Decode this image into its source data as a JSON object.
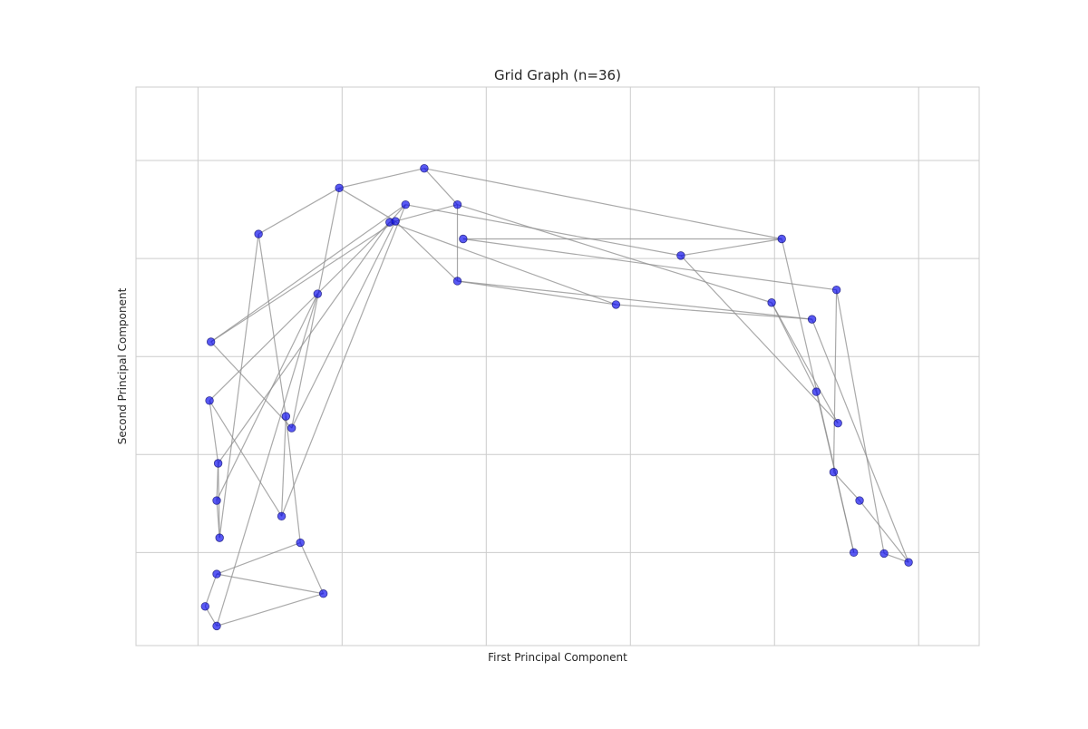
{
  "chart_data": {
    "type": "scatter",
    "subtype": "network-graph",
    "title": "Grid Graph (n=36)",
    "xlabel": "First Principal Component",
    "ylabel": "Second Principal Component",
    "xlim": [
      -1.0,
      4.85
    ],
    "ylim": [
      -5.95,
      -0.25
    ],
    "x_grid": [
      -0.57,
      0.43,
      1.43,
      2.43,
      3.43,
      4.43
    ],
    "y_grid": [
      -1.0,
      -2.0,
      -3.0,
      -4.0,
      -5.0
    ],
    "grid": true,
    "tick_labels_visible": false,
    "node_color": "#0000ee",
    "edge_color": "#8c8c8c",
    "background": "#ffffff",
    "grid_color": "#cccccc",
    "nodes": [
      {
        "id": 0,
        "x": -0.52,
        "y": -5.55
      },
      {
        "id": 1,
        "x": -0.44,
        "y": -5.75
      },
      {
        "id": 2,
        "x": -0.44,
        "y": -5.22
      },
      {
        "id": 3,
        "x": -0.42,
        "y": -4.85
      },
      {
        "id": 4,
        "x": 0.3,
        "y": -5.42
      },
      {
        "id": 5,
        "x": -0.44,
        "y": -4.47
      },
      {
        "id": 6,
        "x": -0.43,
        "y": -4.09
      },
      {
        "id": 7,
        "x": 0.01,
        "y": -4.63
      },
      {
        "id": 8,
        "x": 0.14,
        "y": -4.9
      },
      {
        "id": 9,
        "x": -0.49,
        "y": -3.45
      },
      {
        "id": 10,
        "x": 0.04,
        "y": -3.61
      },
      {
        "id": 11,
        "x": 0.08,
        "y": -3.73
      },
      {
        "id": 12,
        "x": -0.48,
        "y": -2.85
      },
      {
        "id": 13,
        "x": 0.26,
        "y": -2.36
      },
      {
        "id": 14,
        "x": -0.15,
        "y": -1.75
      },
      {
        "id": 15,
        "x": 0.41,
        "y": -1.28
      },
      {
        "id": 16,
        "x": 0.76,
        "y": -1.63
      },
      {
        "id": 17,
        "x": 0.8,
        "y": -1.62
      },
      {
        "id": 18,
        "x": 0.87,
        "y": -1.45
      },
      {
        "id": 19,
        "x": 1.0,
        "y": -1.08
      },
      {
        "id": 20,
        "x": 1.23,
        "y": -1.45
      },
      {
        "id": 21,
        "x": 1.27,
        "y": -1.8
      },
      {
        "id": 22,
        "x": 1.23,
        "y": -2.23
      },
      {
        "id": 23,
        "x": 2.33,
        "y": -2.47
      },
      {
        "id": 24,
        "x": 2.78,
        "y": -1.97
      },
      {
        "id": 25,
        "x": 3.48,
        "y": -1.8
      },
      {
        "id": 26,
        "x": 3.41,
        "y": -2.45
      },
      {
        "id": 27,
        "x": 3.86,
        "y": -2.32
      },
      {
        "id": 28,
        "x": 3.69,
        "y": -2.62
      },
      {
        "id": 29,
        "x": 3.72,
        "y": -3.36
      },
      {
        "id": 30,
        "x": 3.87,
        "y": -3.68
      },
      {
        "id": 31,
        "x": 3.84,
        "y": -4.18
      },
      {
        "id": 32,
        "x": 4.02,
        "y": -4.47
      },
      {
        "id": 33,
        "x": 3.98,
        "y": -5.0
      },
      {
        "id": 34,
        "x": 4.19,
        "y": -5.01
      },
      {
        "id": 35,
        "x": 4.36,
        "y": -5.1
      }
    ],
    "edges": [
      [
        0,
        1
      ],
      [
        0,
        2
      ],
      [
        1,
        4
      ],
      [
        1,
        13
      ],
      [
        2,
        4
      ],
      [
        2,
        8
      ],
      [
        3,
        5
      ],
      [
        3,
        6
      ],
      [
        3,
        14
      ],
      [
        4,
        8
      ],
      [
        5,
        6
      ],
      [
        5,
        13
      ],
      [
        6,
        9
      ],
      [
        6,
        16
      ],
      [
        7,
        9
      ],
      [
        7,
        10
      ],
      [
        7,
        18
      ],
      [
        8,
        10
      ],
      [
        9,
        16
      ],
      [
        10,
        14
      ],
      [
        11,
        15
      ],
      [
        11,
        17
      ],
      [
        12,
        17
      ],
      [
        12,
        18
      ],
      [
        12,
        11
      ],
      [
        14,
        15
      ],
      [
        15,
        17
      ],
      [
        15,
        19
      ],
      [
        16,
        18
      ],
      [
        16,
        23
      ],
      [
        17,
        20
      ],
      [
        17,
        22
      ],
      [
        18,
        24
      ],
      [
        19,
        20
      ],
      [
        19,
        25
      ],
      [
        20,
        22
      ],
      [
        20,
        26
      ],
      [
        21,
        27
      ],
      [
        21,
        25
      ],
      [
        22,
        23
      ],
      [
        22,
        28
      ],
      [
        23,
        28
      ],
      [
        24,
        25
      ],
      [
        24,
        30
      ],
      [
        25,
        33
      ],
      [
        26,
        30
      ],
      [
        26,
        29
      ],
      [
        27,
        31
      ],
      [
        27,
        34
      ],
      [
        28,
        35
      ],
      [
        29,
        33
      ],
      [
        31,
        32
      ],
      [
        32,
        35
      ],
      [
        34,
        35
      ]
    ]
  }
}
